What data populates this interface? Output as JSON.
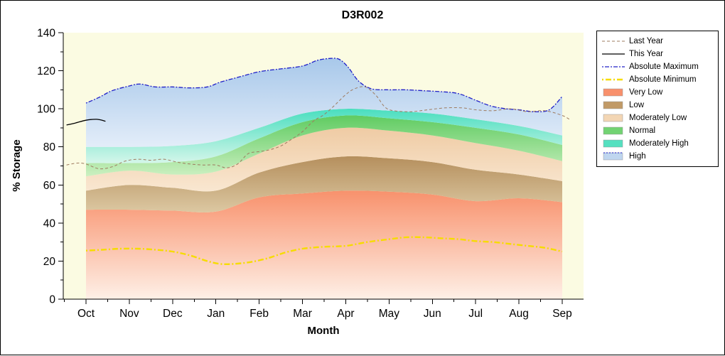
{
  "chart_data": {
    "type": "area",
    "title": "D3R002",
    "xlabel": "Month",
    "ylabel": "% Storage",
    "ylim": [
      0,
      140
    ],
    "yticks": [
      0,
      20,
      40,
      60,
      80,
      100,
      120,
      140
    ],
    "months": [
      "Oct",
      "Nov",
      "Dec",
      "Jan",
      "Feb",
      "Mar",
      "Apr",
      "May",
      "Jun",
      "Jul",
      "Aug",
      "Sep"
    ],
    "plot_background": "#FBFBE2",
    "axis_color": "#000000",
    "bands": [
      {
        "name": "Very Low",
        "top": [
          47,
          47,
          46.5,
          46,
          53.5,
          55.5,
          57,
          56.5,
          55,
          51.5,
          53,
          51
        ],
        "fill_bottom": "#FEF0E7",
        "fill_top": "#F8916C"
      },
      {
        "name": "Low",
        "top": [
          57,
          60,
          58.5,
          57,
          66.5,
          72,
          75,
          74,
          72,
          68,
          65.5,
          62
        ],
        "fill_bottom": "#DCC8A2",
        "fill_top": "#B58F5D"
      },
      {
        "name": "Moderately Low",
        "top": [
          64.5,
          67.5,
          65.5,
          67,
          76.5,
          86,
          90,
          88.5,
          86,
          82,
          78,
          72.5
        ],
        "fill_bottom": "#F9E7D1",
        "fill_top": "#EFCBA4"
      },
      {
        "name": "Normal",
        "top": [
          71.5,
          71.5,
          72,
          75,
          84.5,
          93,
          96.5,
          95,
          93,
          90,
          86.5,
          81
        ],
        "fill_bottom": "#CCF0C1",
        "fill_top": "#5FCB61"
      },
      {
        "name": "Moderately High",
        "top": [
          80,
          80,
          80.5,
          83,
          90,
          97.5,
          100,
          99,
          97.5,
          94.5,
          91,
          86
        ],
        "fill_bottom": "#D5F6EA",
        "fill_top": "#49DEBF"
      },
      {
        "name": "High",
        "top": "Absolute Maximum",
        "fill_bottom": "#E3EDF9",
        "fill_top": "#A8C8EA"
      }
    ],
    "lines": [
      {
        "name": "Absolute Maximum",
        "color": "#2020C8",
        "width": 1.3,
        "dash": "2 2 6 2",
        "points": [
          [
            0,
            103
          ],
          [
            0.3,
            106
          ],
          [
            0.6,
            109.5
          ],
          [
            1,
            112
          ],
          [
            1.25,
            113
          ],
          [
            1.6,
            111.5
          ],
          [
            2,
            111.5
          ],
          [
            2.4,
            111
          ],
          [
            2.8,
            111.5
          ],
          [
            3.1,
            114
          ],
          [
            3.5,
            116.5
          ],
          [
            4,
            119.5
          ],
          [
            4.5,
            121
          ],
          [
            5,
            122.5
          ],
          [
            5.35,
            125.5
          ],
          [
            5.65,
            126.5
          ],
          [
            5.85,
            126
          ],
          [
            6.05,
            122
          ],
          [
            6.3,
            114.5
          ],
          [
            6.6,
            110.5
          ],
          [
            7,
            110
          ],
          [
            7.4,
            110
          ],
          [
            7.8,
            109.5
          ],
          [
            8.2,
            109
          ],
          [
            8.6,
            108
          ],
          [
            9,
            104.5
          ],
          [
            9.35,
            101.5
          ],
          [
            9.7,
            100
          ],
          [
            10,
            99.5
          ],
          [
            10.35,
            98.5
          ],
          [
            10.7,
            99.5
          ],
          [
            11,
            106.5
          ]
        ]
      },
      {
        "name": "Absolute Minimum",
        "color": "#F6DC00",
        "width": 2.4,
        "dash": "2 3 8 3",
        "points": [
          [
            0,
            25.5
          ],
          [
            0.4,
            26
          ],
          [
            0.8,
            26.5
          ],
          [
            1.2,
            26.5
          ],
          [
            1.6,
            26
          ],
          [
            2,
            25
          ],
          [
            2.4,
            23
          ],
          [
            2.8,
            20
          ],
          [
            3.1,
            18.5
          ],
          [
            3.4,
            18.5
          ],
          [
            3.8,
            19.5
          ],
          [
            4.2,
            21.5
          ],
          [
            4.6,
            24.5
          ],
          [
            5,
            26.5
          ],
          [
            5.5,
            27.5
          ],
          [
            6,
            28
          ],
          [
            6.5,
            30
          ],
          [
            7,
            31.5
          ],
          [
            7.4,
            32.5
          ],
          [
            7.8,
            32.5
          ],
          [
            8.2,
            32
          ],
          [
            8.6,
            31.5
          ],
          [
            9,
            30.5
          ],
          [
            9.4,
            30
          ],
          [
            9.8,
            29
          ],
          [
            10.2,
            28
          ],
          [
            10.6,
            27
          ],
          [
            11,
            25
          ]
        ]
      },
      {
        "name": "Last Year",
        "color": "#9E7B5F",
        "width": 1,
        "dash": "4 3",
        "points": [
          [
            -0.45,
            70.5
          ],
          [
            -0.2,
            71.5
          ],
          [
            0,
            71
          ],
          [
            0.3,
            68.5
          ],
          [
            0.6,
            69.5
          ],
          [
            0.9,
            72.5
          ],
          [
            1.2,
            73.5
          ],
          [
            1.5,
            73
          ],
          [
            1.8,
            73.5
          ],
          [
            2.1,
            72
          ],
          [
            2.4,
            71
          ],
          [
            2.7,
            70.5
          ],
          [
            3,
            70.5
          ],
          [
            3.25,
            69
          ],
          [
            3.5,
            71
          ],
          [
            3.75,
            76.5
          ],
          [
            4,
            77.5
          ],
          [
            4.25,
            78.5
          ],
          [
            4.5,
            80.5
          ],
          [
            4.75,
            84
          ],
          [
            5,
            88
          ],
          [
            5.25,
            93.5
          ],
          [
            5.5,
            97
          ],
          [
            5.75,
            102
          ],
          [
            6,
            107.5
          ],
          [
            6.2,
            110.5
          ],
          [
            6.45,
            111.5
          ],
          [
            6.7,
            107
          ],
          [
            6.9,
            101
          ],
          [
            7.1,
            99
          ],
          [
            7.5,
            98.5
          ],
          [
            7.9,
            99.5
          ],
          [
            8.3,
            100.5
          ],
          [
            8.7,
            100.5
          ],
          [
            9,
            99.5
          ],
          [
            9.4,
            99
          ],
          [
            9.8,
            100
          ],
          [
            10.2,
            98.5
          ],
          [
            10.6,
            99
          ],
          [
            11,
            96.5
          ],
          [
            11.2,
            94
          ]
        ]
      },
      {
        "name": "This Year",
        "color": "#000000",
        "width": 1.3,
        "dash": "",
        "points": [
          [
            -0.45,
            91.5
          ],
          [
            -0.25,
            92.5
          ],
          [
            0,
            94
          ],
          [
            0.25,
            94.5
          ],
          [
            0.45,
            93.5
          ]
        ]
      }
    ],
    "legend": [
      {
        "label": "Last Year",
        "sample": "line",
        "color": "#9E7B5F",
        "width": 1,
        "dash": "4 3"
      },
      {
        "label": "This Year",
        "sample": "line",
        "color": "#000000",
        "width": 1.3,
        "dash": ""
      },
      {
        "label": "Absolute Maximum",
        "sample": "line",
        "color": "#2020C8",
        "width": 1.3,
        "dash": "2 2 6 2"
      },
      {
        "label": "Absolute Minimum",
        "sample": "line",
        "color": "#F6DC00",
        "width": 2.4,
        "dash": "2 3 8 3"
      },
      {
        "label": "Very Low",
        "sample": "fill",
        "color": "#F8906C"
      },
      {
        "label": "Low",
        "sample": "fill",
        "color": "#C19A67"
      },
      {
        "label": "Moderately Low",
        "sample": "fill",
        "color": "#F3D6B4"
      },
      {
        "label": "Normal",
        "sample": "fill",
        "color": "#72D372"
      },
      {
        "label": "Moderately High",
        "sample": "fill",
        "color": "#55E0C0"
      },
      {
        "label": "High",
        "sample": "fill",
        "color": "#BFD6EF",
        "edge": "#2020C8"
      }
    ]
  }
}
